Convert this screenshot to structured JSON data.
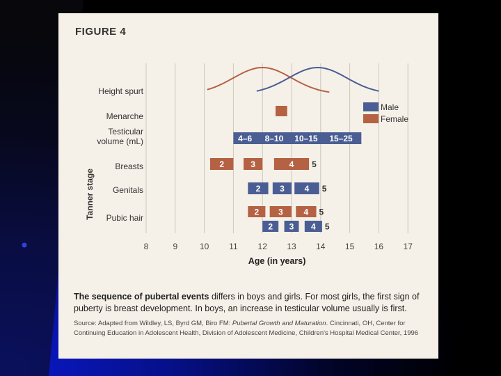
{
  "slide": {
    "bg_colors": [
      "#0a0a12",
      "#000000",
      "#08106a"
    ]
  },
  "figure": {
    "title": "FIGURE 4",
    "caption_bold": "The sequence of pubertal events",
    "caption_rest": " differs in boys and girls. For most girls, the first sign of puberty is breast development. In boys, an increase in testicular volume usually is first.",
    "source_lead": "Source: Adapted from Wildley, LS, Byrd GM, Biro FM: ",
    "source_title": "Pubertal Growth and Maturation",
    "source_rest": ". Cincinnati, OH, Center for Continuing Education in Adolescent Health, Division of Adolescent Medicine, Children's Hospital Medical Center, 1996"
  },
  "chart_data": {
    "type": "timeline",
    "xlabel": "Age (in years)",
    "x_ticks": [
      8,
      9,
      10,
      11,
      12,
      13,
      14,
      15,
      16,
      17
    ],
    "xlim": [
      8,
      17
    ],
    "tanner_label": "Tanner stage",
    "colors": {
      "Male": "#4a5e93",
      "Female": "#b56144"
    },
    "legend": {
      "position": "right",
      "entries": [
        "Male",
        "Female"
      ]
    },
    "rows": [
      {
        "label": "Height spurt"
      },
      {
        "label": "Menarche"
      },
      {
        "label": "Testicular volume (mL)"
      },
      {
        "label": "Breasts"
      },
      {
        "label": "Genitals"
      },
      {
        "label": "Pubic hair"
      }
    ],
    "height_spurt": {
      "Female": {
        "start": 10.1,
        "peak": 12.0,
        "end": 14.3
      },
      "Male": {
        "start": 11.8,
        "peak": 13.9,
        "end": 16.0
      }
    },
    "menarche": {
      "series": "Female",
      "start": 12.45,
      "end": 12.85
    },
    "testicular_volume": {
      "series": "Male",
      "segments": [
        {
          "label": "4–6",
          "start": 11.0,
          "end": 11.8
        },
        {
          "label": "8–10",
          "start": 11.8,
          "end": 13.0
        },
        {
          "label": "10–15",
          "start": 13.0,
          "end": 14.0
        },
        {
          "label": "15–25",
          "start": 14.0,
          "end": 15.4
        }
      ]
    },
    "breasts": {
      "series": "Female",
      "segments": [
        {
          "label": "2",
          "start": 10.2,
          "end": 11.0
        },
        {
          "label": "3",
          "start": 11.35,
          "end": 12.0
        },
        {
          "label": "4",
          "start": 12.4,
          "end": 13.6
        }
      ],
      "end_label": "5"
    },
    "genitals": {
      "series": "Male",
      "segments": [
        {
          "label": "2",
          "start": 11.5,
          "end": 12.2
        },
        {
          "label": "3",
          "start": 12.35,
          "end": 13.0
        },
        {
          "label": "4",
          "start": 13.1,
          "end": 13.95
        }
      ],
      "end_label": "5"
    },
    "pubic_hair": [
      {
        "series": "Female",
        "segments": [
          {
            "label": "2",
            "start": 11.5,
            "end": 12.1
          },
          {
            "label": "3",
            "start": 12.25,
            "end": 13.0
          },
          {
            "label": "4",
            "start": 13.15,
            "end": 13.85
          }
        ],
        "end_label": "5"
      },
      {
        "series": "Male",
        "segments": [
          {
            "label": "2",
            "start": 12.0,
            "end": 12.55
          },
          {
            "label": "3",
            "start": 12.75,
            "end": 13.25
          },
          {
            "label": "4",
            "start": 13.45,
            "end": 14.05
          }
        ],
        "end_label": "5"
      }
    ]
  }
}
